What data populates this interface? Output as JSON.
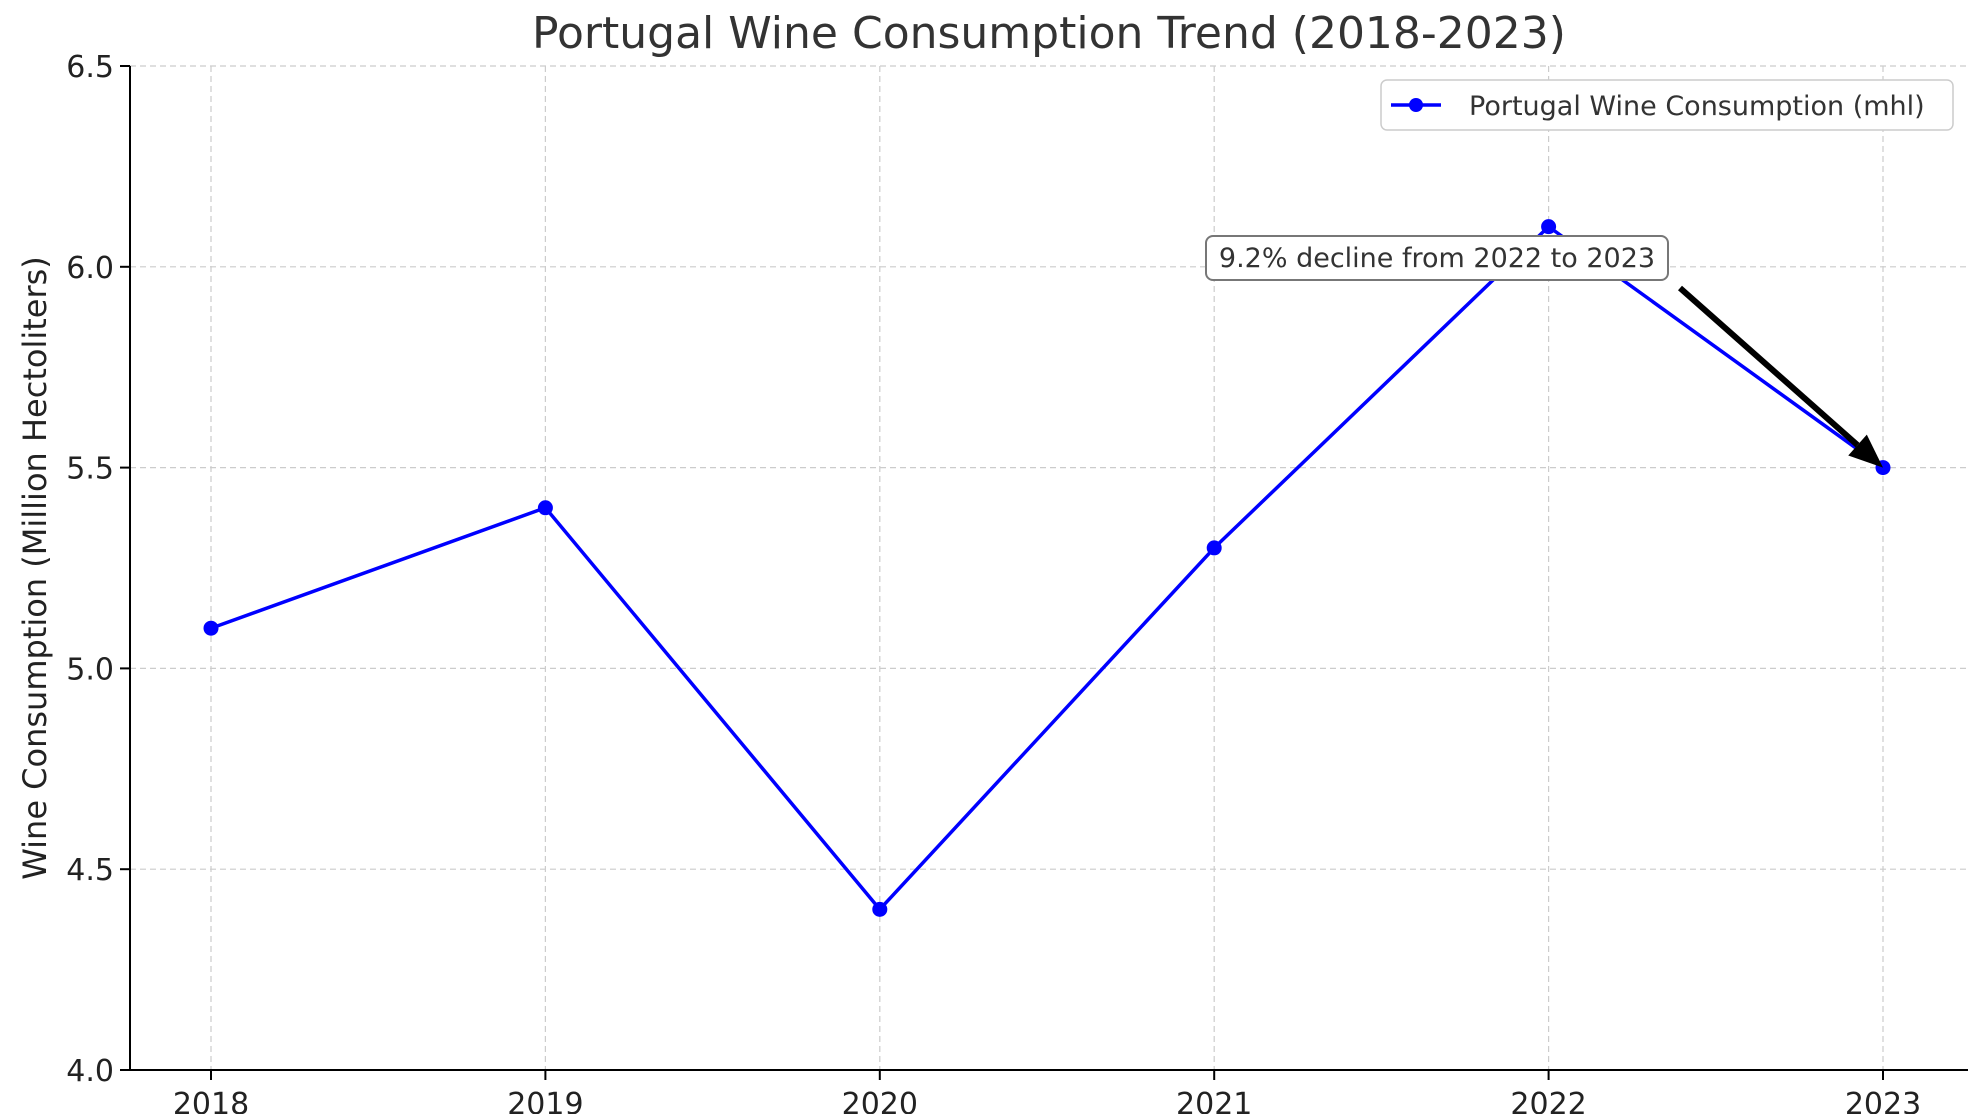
{
  "chart_data": {
    "type": "line",
    "title": "Portugal Wine Consumption Trend (2018-2023)",
    "xlabel": "",
    "ylabel": "Wine Consumption (Million Hectoliters)",
    "x": [
      "2018",
      "2019",
      "2020",
      "2021",
      "2022",
      "2023"
    ],
    "series": [
      {
        "name": "Portugal Wine Consumption (mhl)",
        "values": [
          5.1,
          5.4,
          4.4,
          5.3,
          6.1,
          5.5
        ],
        "color": "#0000ff"
      }
    ],
    "ylim": [
      4.0,
      6.5
    ],
    "yticks": [
      "4.0",
      "4.5",
      "5.0",
      "5.5",
      "6.0",
      "6.5"
    ],
    "grid": true,
    "legend_position": "top-right",
    "annotation": {
      "text": "9.2% decline from 2022 to 2023",
      "target_x": "2023",
      "target_y": 5.5
    }
  }
}
